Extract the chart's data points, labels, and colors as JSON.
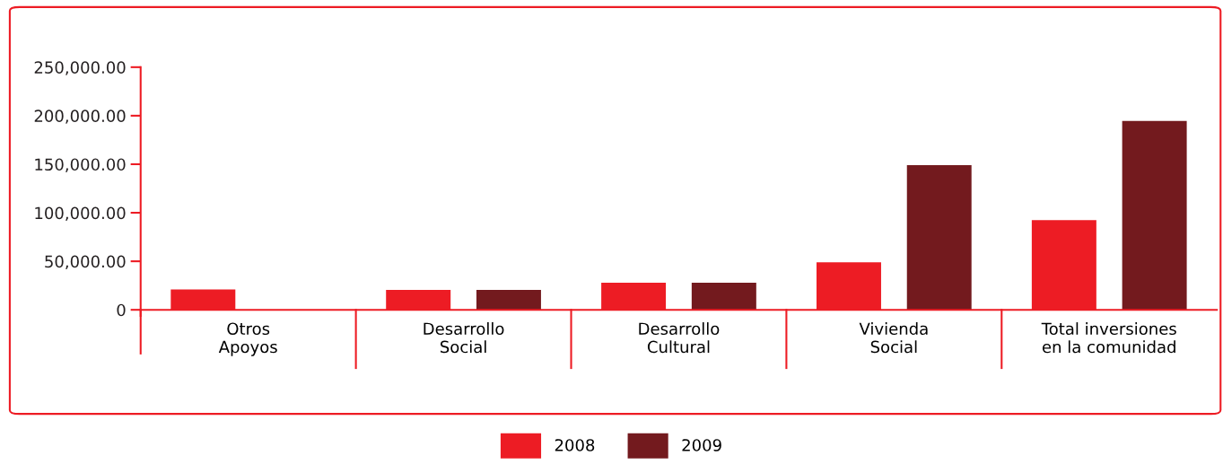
{
  "chart_data": {
    "type": "bar",
    "categories": [
      "Otros\nApoyos",
      "Desarrollo\nSocial",
      "Desarrollo\nCultural",
      "Vivienda\nSocial",
      "Total inversiones\nen la comunidad"
    ],
    "series": [
      {
        "name": "2008",
        "color": "#ed1c24",
        "values": [
          21000,
          20500,
          28000,
          49000,
          92500
        ]
      },
      {
        "name": "2009",
        "color": "#731a1e",
        "values": [
          null,
          20500,
          28000,
          149000,
          194500
        ]
      }
    ],
    "ylim": [
      0,
      250000
    ],
    "yticks": [
      0,
      {
        "value": 50000,
        "label": "50,000.00"
      },
      {
        "value": 100000,
        "label": "100,000.00"
      },
      {
        "value": 150000,
        "label": "150,000.00"
      },
      {
        "value": 200000,
        "label": "200,000.00"
      },
      {
        "value": 250000,
        "label": "250,000.00"
      }
    ],
    "grid": false,
    "legend": "bottom"
  }
}
